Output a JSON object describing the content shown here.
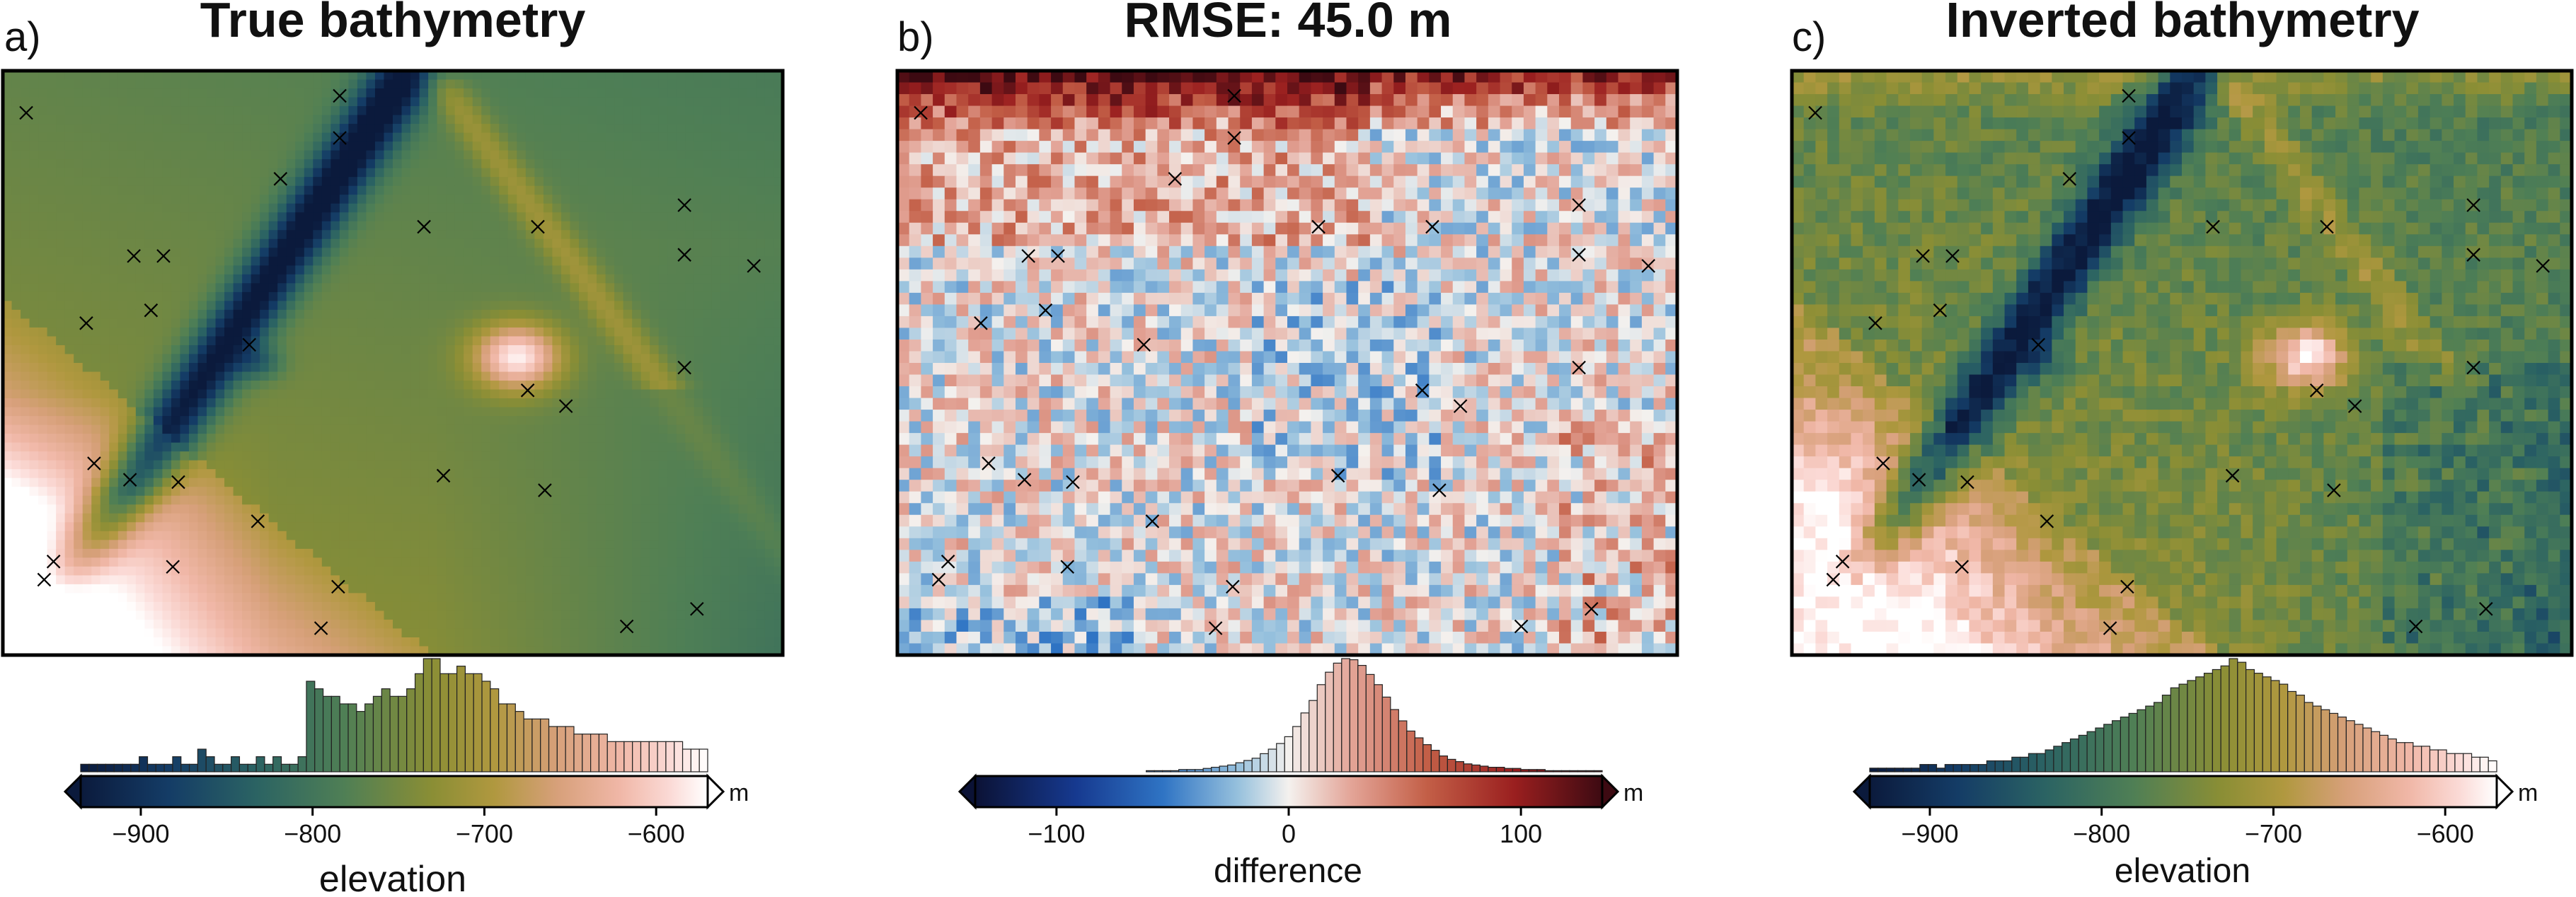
{
  "figure": {
    "panels": [
      {
        "letter": "a)",
        "title": "True bathymetry",
        "cbar_label": "elevation",
        "cbar_unit": "m",
        "ticks": [
          "−900",
          "−800",
          "−700",
          "−600"
        ],
        "tick_values": [
          -900,
          -800,
          -700,
          -600
        ]
      },
      {
        "letter": "b)",
        "title": "RMSE: 45.0 m",
        "cbar_label": "difference",
        "cbar_unit": "m",
        "ticks": [
          "−100",
          "0",
          "100"
        ],
        "tick_values": [
          -100,
          0,
          100
        ]
      },
      {
        "letter": "c)",
        "title": "Inverted bathymetry",
        "cbar_label": "elevation",
        "cbar_unit": "m",
        "ticks": [
          "−900",
          "−800",
          "−700",
          "−600"
        ],
        "tick_values": [
          -900,
          -800,
          -700,
          -600
        ]
      }
    ]
  },
  "chart_data": [
    {
      "type": "heatmap",
      "title": "True bathymetry",
      "colorbar": {
        "label": "elevation",
        "unit": "m",
        "range": [
          -935,
          -570
        ],
        "cmap": "batlow-like (dark blue → green → olive → pink → white)"
      },
      "features": "smooth field ≈ -750 m; deep (≈ -930 m) linear trench from upper-left; shallow (≈ -570 m) pink area at upper-left corner; shallow circular seamount ≈ -580 m; small depression ≈ -830 m",
      "constraint_points": [
        [
          0.03,
          0.072
        ],
        [
          0.432,
          0.043
        ],
        [
          0.432,
          0.115
        ],
        [
          0.356,
          0.185
        ],
        [
          0.168,
          0.317
        ],
        [
          0.206,
          0.317
        ],
        [
          0.54,
          0.267
        ],
        [
          0.686,
          0.267
        ],
        [
          0.874,
          0.23
        ],
        [
          0.874,
          0.315
        ],
        [
          0.963,
          0.334
        ],
        [
          0.107,
          0.432
        ],
        [
          0.19,
          0.41
        ],
        [
          0.316,
          0.469
        ],
        [
          0.673,
          0.547
        ],
        [
          0.722,
          0.574
        ],
        [
          0.874,
          0.508
        ],
        [
          0.117,
          0.672
        ],
        [
          0.163,
          0.7
        ],
        [
          0.225,
          0.704
        ],
        [
          0.565,
          0.693
        ],
        [
          0.695,
          0.718
        ],
        [
          0.327,
          0.771
        ],
        [
          0.065,
          0.84
        ],
        [
          0.053,
          0.871
        ],
        [
          0.218,
          0.849
        ],
        [
          0.43,
          0.883
        ],
        [
          0.408,
          0.954
        ],
        [
          0.8,
          0.951
        ],
        [
          0.89,
          0.921
        ]
      ],
      "histogram": {
        "bin_start": -935,
        "bin_end": -570,
        "counts": [
          1,
          1,
          1,
          1,
          1,
          1,
          1,
          2,
          1,
          1,
          1,
          2,
          1,
          1,
          3,
          2,
          1,
          1,
          2,
          1,
          1,
          2,
          1,
          2,
          1,
          1,
          2,
          12,
          11,
          10,
          10,
          9,
          9,
          8,
          9,
          10,
          11,
          10,
          10,
          11,
          13,
          15,
          15,
          13,
          13,
          14,
          13,
          13,
          12,
          11,
          9,
          9,
          8,
          7,
          7,
          7,
          6,
          6,
          6,
          5,
          5,
          5,
          5,
          4,
          4,
          4,
          4,
          4,
          4,
          4,
          4,
          4,
          3,
          3,
          3
        ]
      }
    },
    {
      "type": "heatmap",
      "title": "RMSE: 45.0 m",
      "colorbar": {
        "label": "difference",
        "unit": "m",
        "range": [
          -135,
          135
        ],
        "cmap": "diverging (dark navy → blue → white → red → dark maroon)"
      },
      "rmse": 45.0,
      "features": "noisy cell-wise difference map; large positive (red) errors along top edge and in corners; mixed blue/red elsewhere",
      "constraint_points": [
        [
          0.03,
          0.072
        ],
        [
          0.432,
          0.043
        ],
        [
          0.432,
          0.115
        ],
        [
          0.356,
          0.185
        ],
        [
          0.168,
          0.317
        ],
        [
          0.206,
          0.317
        ],
        [
          0.54,
          0.267
        ],
        [
          0.686,
          0.267
        ],
        [
          0.874,
          0.23
        ],
        [
          0.874,
          0.315
        ],
        [
          0.963,
          0.334
        ],
        [
          0.107,
          0.432
        ],
        [
          0.19,
          0.41
        ],
        [
          0.316,
          0.469
        ],
        [
          0.673,
          0.547
        ],
        [
          0.722,
          0.574
        ],
        [
          0.874,
          0.508
        ],
        [
          0.117,
          0.672
        ],
        [
          0.163,
          0.7
        ],
        [
          0.225,
          0.704
        ],
        [
          0.565,
          0.693
        ],
        [
          0.695,
          0.718
        ],
        [
          0.327,
          0.771
        ],
        [
          0.065,
          0.84
        ],
        [
          0.053,
          0.871
        ],
        [
          0.218,
          0.849
        ],
        [
          0.43,
          0.883
        ],
        [
          0.408,
          0.954
        ],
        [
          0.8,
          0.951
        ],
        [
          0.89,
          0.921
        ]
      ],
      "histogram": {
        "bin_start": -135,
        "bin_end": 135,
        "counts": [
          0,
          0,
          0,
          0,
          0,
          0,
          0,
          0,
          0,
          0,
          0,
          0,
          0,
          0,
          0,
          0,
          0,
          0,
          0,
          0,
          0,
          1,
          1,
          1,
          1,
          2,
          2,
          2,
          3,
          4,
          5,
          6,
          8,
          10,
          12,
          16,
          20,
          25,
          31,
          40,
          52,
          63,
          77,
          88,
          96,
          100,
          99,
          94,
          86,
          77,
          66,
          55,
          45,
          36,
          30,
          24,
          19,
          14,
          11,
          9,
          7,
          6,
          5,
          4,
          4,
          3,
          3,
          2,
          2,
          2,
          1,
          1,
          1,
          1,
          1,
          1,
          1
        ]
      }
    },
    {
      "type": "heatmap",
      "title": "Inverted bathymetry",
      "colorbar": {
        "label": "elevation",
        "unit": "m",
        "range": [
          -935,
          -570
        ],
        "cmap": "batlow-like (dark blue → green → olive → pink → white)"
      },
      "features": "recovered field similar to (a) with added cell noise; trench and seamount recovered; lower-right deeper than truth",
      "constraint_points": [
        [
          0.03,
          0.072
        ],
        [
          0.432,
          0.043
        ],
        [
          0.432,
          0.115
        ],
        [
          0.356,
          0.185
        ],
        [
          0.168,
          0.317
        ],
        [
          0.206,
          0.317
        ],
        [
          0.54,
          0.267
        ],
        [
          0.686,
          0.267
        ],
        [
          0.874,
          0.23
        ],
        [
          0.874,
          0.315
        ],
        [
          0.963,
          0.334
        ],
        [
          0.107,
          0.432
        ],
        [
          0.19,
          0.41
        ],
        [
          0.316,
          0.469
        ],
        [
          0.673,
          0.547
        ],
        [
          0.722,
          0.574
        ],
        [
          0.874,
          0.508
        ],
        [
          0.117,
          0.672
        ],
        [
          0.163,
          0.7
        ],
        [
          0.225,
          0.704
        ],
        [
          0.565,
          0.693
        ],
        [
          0.695,
          0.718
        ],
        [
          0.327,
          0.771
        ],
        [
          0.065,
          0.84
        ],
        [
          0.053,
          0.871
        ],
        [
          0.218,
          0.849
        ],
        [
          0.43,
          0.883
        ],
        [
          0.408,
          0.954
        ],
        [
          0.8,
          0.951
        ],
        [
          0.89,
          0.921
        ]
      ],
      "histogram": {
        "bin_start": -935,
        "bin_end": -570,
        "counts": [
          1,
          1,
          1,
          1,
          1,
          1,
          2,
          2,
          1,
          2,
          2,
          2,
          2,
          2,
          3,
          3,
          3,
          4,
          4,
          5,
          5,
          6,
          7,
          8,
          9,
          10,
          11,
          12,
          13,
          14,
          15,
          16,
          17,
          18,
          19,
          21,
          23,
          24,
          25,
          26,
          27,
          28,
          29,
          31,
          30,
          28,
          27,
          26,
          25,
          24,
          22,
          21,
          19,
          18,
          17,
          16,
          15,
          14,
          13,
          12,
          11,
          10,
          9,
          8,
          8,
          7,
          7,
          6,
          6,
          5,
          5,
          5,
          4,
          4,
          3
        ]
      }
    }
  ]
}
